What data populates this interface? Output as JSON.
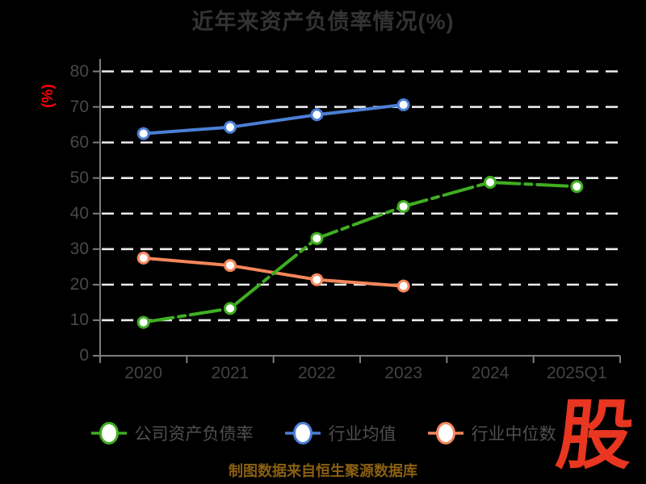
{
  "title": "近年来资产负债率情况(%)",
  "y_axis": {
    "unit_label": "(%)",
    "ticks": [
      0,
      10,
      20,
      30,
      40,
      50,
      60,
      70,
      80
    ]
  },
  "chart_data": {
    "type": "line",
    "categories": [
      "2020",
      "2021",
      "2022",
      "2023",
      "2024",
      "2025Q1"
    ],
    "series": [
      {
        "name": "公司资产负债率",
        "slug": "company-debt-ratio",
        "color": "#3fae21",
        "line_style": "long-dash-dot",
        "values": [
          9.4,
          13.3,
          33.0,
          42.0,
          48.8,
          47.6
        ]
      },
      {
        "name": "行业均值",
        "slug": "industry-mean",
        "color": "#4b7fd6",
        "line_style": "solid",
        "values": [
          62.5,
          64.3,
          67.8,
          70.6,
          null,
          null
        ]
      },
      {
        "name": "行业中位数",
        "slug": "industry-median",
        "color": "#f5875a",
        "line_style": "solid",
        "values": [
          27.5,
          25.4,
          21.4,
          19.6,
          null,
          null
        ]
      }
    ],
    "title": "近年来资产负债率情况(%)",
    "xlabel": "",
    "ylabel": "(%)",
    "ylim": [
      0,
      80
    ],
    "grid": "dashed-white-horizontal",
    "legend_position": "bottom",
    "marker": "white-filled-circle"
  },
  "footer": {
    "source_text": "制图数据来自恒生聚源数据库"
  },
  "logo": {
    "text": "股"
  },
  "colors": {
    "background": "#000000",
    "title_text": "#333333",
    "tick_text": "#454545",
    "legend_text": "#4f4f4f",
    "gridline": "#ececec",
    "axis_line": "#7d7d7d",
    "y_unit_label": "#ff0000",
    "footer_text": "#8a5f13",
    "logo_red": "#e93620"
  }
}
